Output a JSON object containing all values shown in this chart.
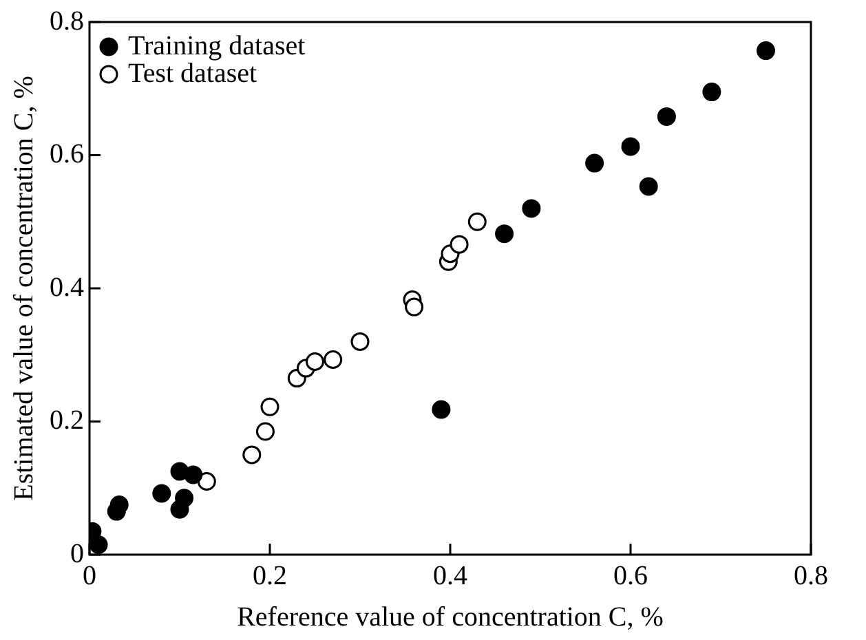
{
  "chart_data": {
    "type": "scatter",
    "xlabel": "Reference value of concentration C, %",
    "ylabel": "Estimated value of concentration C, %",
    "xlim": [
      0,
      0.8
    ],
    "ylim": [
      0,
      0.8
    ],
    "xticks": [
      0,
      0.2,
      0.4,
      0.6,
      0.8
    ],
    "yticks": [
      0,
      0.2,
      0.4,
      0.6,
      0.8
    ],
    "grid": false,
    "legend": "top left",
    "marker": "circle",
    "series": [
      {
        "name": "Training dataset",
        "color": "#000000",
        "x": [
          0.003,
          0.01,
          0.03,
          0.033,
          0.08,
          0.1,
          0.1,
          0.105,
          0.115,
          0.39,
          0.46,
          0.49,
          0.56,
          0.6,
          0.62,
          0.64,
          0.69,
          0.75
        ],
        "values": [
          0.035,
          0.015,
          0.065,
          0.075,
          0.092,
          0.068,
          0.125,
          0.085,
          0.12,
          0.218,
          0.482,
          0.52,
          0.588,
          0.613,
          0.553,
          0.658,
          0.695,
          0.757
        ]
      },
      {
        "name": "Test dataset",
        "color": "#ffffff",
        "x": [
          0.13,
          0.18,
          0.195,
          0.2,
          0.23,
          0.24,
          0.25,
          0.27,
          0.3,
          0.358,
          0.36,
          0.398,
          0.4,
          0.41,
          0.43
        ],
        "values": [
          0.11,
          0.15,
          0.185,
          0.222,
          0.265,
          0.28,
          0.29,
          0.293,
          0.32,
          0.383,
          0.372,
          0.44,
          0.452,
          0.466,
          0.5
        ]
      }
    ]
  }
}
